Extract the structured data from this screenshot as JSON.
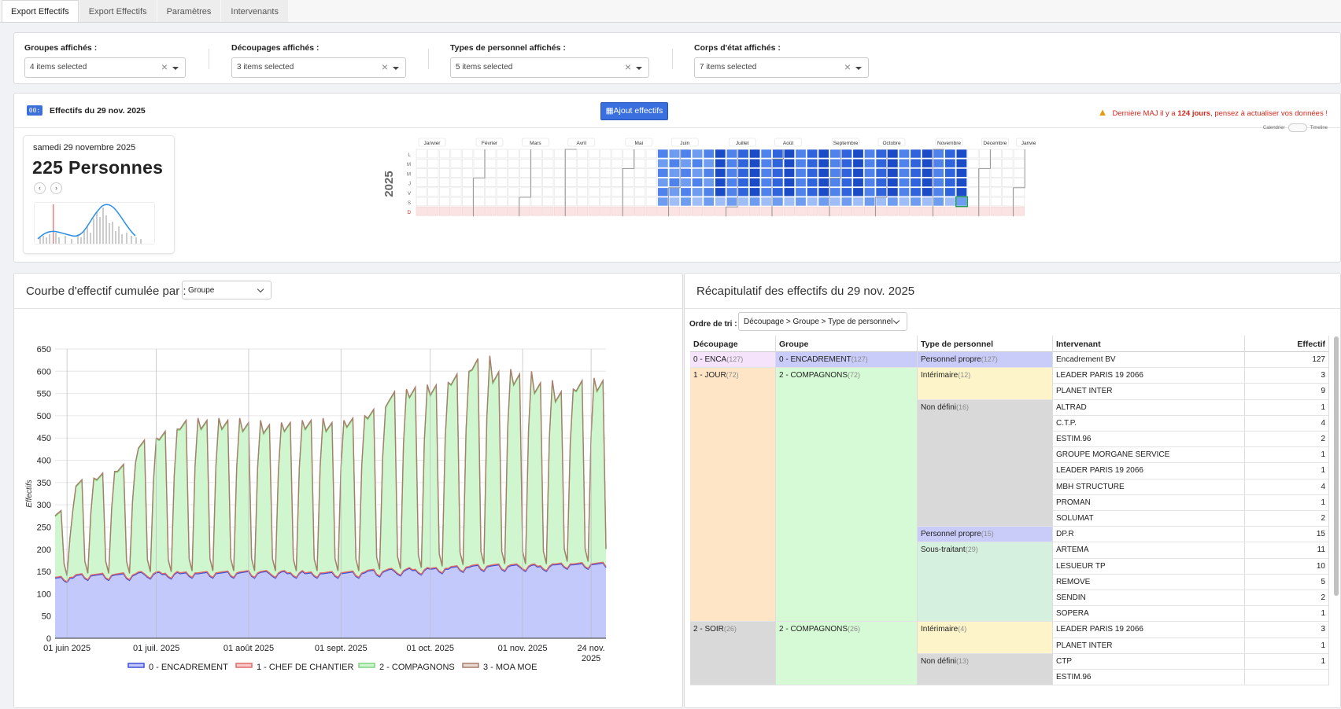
{
  "tabs": [
    "Export Effectifs",
    "Export Effectifs",
    "Paramètres",
    "Intervenants"
  ],
  "filters": [
    {
      "label": "Groupes affichés :",
      "value": "4 items selected"
    },
    {
      "label": "Découpages affichés :",
      "value": "3 items selected"
    },
    {
      "label": "Types de personnel affichés :",
      "value": "5 items selected"
    },
    {
      "label": "Corps d'état affichés :",
      "value": "7 items selected"
    }
  ],
  "effectifs": {
    "title": "Effectifs du 29 nov. 2025",
    "ajout_button": "Ajout effectifs",
    "warning_pre": "Dernière MAJ il y a ",
    "warning_bold": "124 jours",
    "warning_post": ", pensez à actualiser vos données !",
    "toggle_left": "Calendrier",
    "toggle_right": "Timeline",
    "card": {
      "date": "samedi 29 novembre 2025",
      "count": "225 Personnes"
    },
    "year": "2025",
    "months": [
      "Janvier",
      "Février",
      "Mars",
      "Avril",
      "Mai",
      "Juin",
      "Juillet",
      "Août",
      "Septembre",
      "Octobre",
      "Novembre",
      "Décembre",
      "Janvier"
    ],
    "weekdays": [
      "L",
      "M",
      "M",
      "J",
      "V",
      "S",
      "D"
    ]
  },
  "chart_panel": {
    "title": "Courbe d'effectif cumulée par :",
    "group_select": "Groupe"
  },
  "chart_data": {
    "type": "area",
    "stacked": true,
    "ylabel": "Effectifs",
    "ylim": [
      0,
      650
    ],
    "yticks": [
      0,
      50,
      100,
      150,
      200,
      250,
      300,
      350,
      400,
      450,
      500,
      550,
      600,
      650
    ],
    "xticks": [
      "01 juin 2025",
      "01 juil. 2025",
      "01 août 2025",
      "01 sept. 2025",
      "01 oct. 2025",
      "01 nov. 2025",
      "24 nov. 2025"
    ],
    "x_start": "2025-05-28",
    "x_end": "2025-11-29",
    "legend_position": "bottom",
    "series": [
      {
        "name": "0 - ENCADREMENT",
        "color": "#3f51d6",
        "fill": "#c0c6fb"
      },
      {
        "name": "1 - CHEF DE CHANTIER",
        "color": "#e06b6b",
        "fill": "#f8c7c7"
      },
      {
        "name": "2 - COMPAGNONS",
        "color": "#7ed47e",
        "fill": "#cdf5cd"
      },
      {
        "name": "3 - MOA MOE",
        "color": "#a97d6b",
        "fill": "#e8d8cf"
      }
    ],
    "weekly_peaks": [
      [
        290,
        135
      ],
      [
        360,
        140
      ],
      [
        375,
        140
      ],
      [
        395,
        140
      ],
      [
        450,
        143
      ],
      [
        470,
        143
      ],
      [
        495,
        145
      ],
      [
        495,
        145
      ],
      [
        495,
        145
      ],
      [
        490,
        145
      ],
      [
        485,
        145
      ],
      [
        490,
        145
      ],
      [
        495,
        145
      ],
      [
        490,
        145
      ],
      [
        500,
        145
      ],
      [
        520,
        148
      ],
      [
        560,
        150
      ],
      [
        570,
        152
      ],
      [
        575,
        155
      ],
      [
        600,
        158
      ],
      [
        635,
        160
      ],
      [
        605,
        160
      ],
      [
        600,
        160
      ],
      [
        580,
        160
      ],
      [
        560,
        165
      ],
      [
        585,
        165
      ]
    ]
  },
  "recap": {
    "title": "Récapitulatif des effectifs du 29 nov. 2025",
    "tri_label": "Ordre de tri :",
    "tri_value": "Découpage > Groupe > Type de personnel",
    "headers": [
      "Découpage",
      "Groupe",
      "Type de personnel",
      "Intervenant",
      "Effectif"
    ],
    "decoupages": [
      {
        "label": "0 - ENCA",
        "count": "(127)"
      },
      {
        "label": "1 - JOUR",
        "count": "(72)"
      },
      {
        "label": "2 - SOIR",
        "count": "(26)"
      }
    ],
    "groupes": [
      {
        "label": "0 - ENCADREMENT",
        "count": "(127)"
      },
      {
        "label": "2 - COMPAGNONS",
        "count": "(72)"
      },
      {
        "label": "2 - COMPAGNONS",
        "count": "(26)"
      }
    ],
    "types": [
      {
        "label": "Personnel propre",
        "count": "(127)"
      },
      {
        "label": "Intérimaire",
        "count": "(12)"
      },
      {
        "label": "Non défini",
        "count": "(16)"
      },
      {
        "label": "Personnel propre",
        "count": "(15)"
      },
      {
        "label": "Sous-traitant",
        "count": "(29)"
      },
      {
        "label": "Intérimaire",
        "count": "(4)"
      },
      {
        "label": "Non défini",
        "count": "(13)"
      }
    ],
    "rows": [
      {
        "name": "Encadrement BV",
        "value": "127"
      },
      {
        "name": "LEADER PARIS 19 2066",
        "value": "3"
      },
      {
        "name": "PLANET INTER",
        "value": "9"
      },
      {
        "name": "ALTRAD",
        "value": "1"
      },
      {
        "name": "C.T.P.",
        "value": "4"
      },
      {
        "name": "ESTIM.96",
        "value": "2"
      },
      {
        "name": "GROUPE MORGANE SERVICE",
        "value": "1"
      },
      {
        "name": "LEADER PARIS 19 2066",
        "value": "1"
      },
      {
        "name": "MBH STRUCTURE",
        "value": "4"
      },
      {
        "name": "PROMAN",
        "value": "1"
      },
      {
        "name": "SOLUMAT",
        "value": "2"
      },
      {
        "name": "DP.R",
        "value": "15"
      },
      {
        "name": "ARTEMA",
        "value": "11"
      },
      {
        "name": "LESUEUR TP",
        "value": "10"
      },
      {
        "name": "REMOVE",
        "value": "5"
      },
      {
        "name": "SENDIN",
        "value": "2"
      },
      {
        "name": "SOPERA",
        "value": "1"
      },
      {
        "name": "LEADER PARIS 19 2066",
        "value": "3"
      },
      {
        "name": "PLANET INTER",
        "value": "1"
      },
      {
        "name": "CTP",
        "value": "1"
      },
      {
        "name": "ESTIM.96",
        "value": ""
      }
    ]
  }
}
